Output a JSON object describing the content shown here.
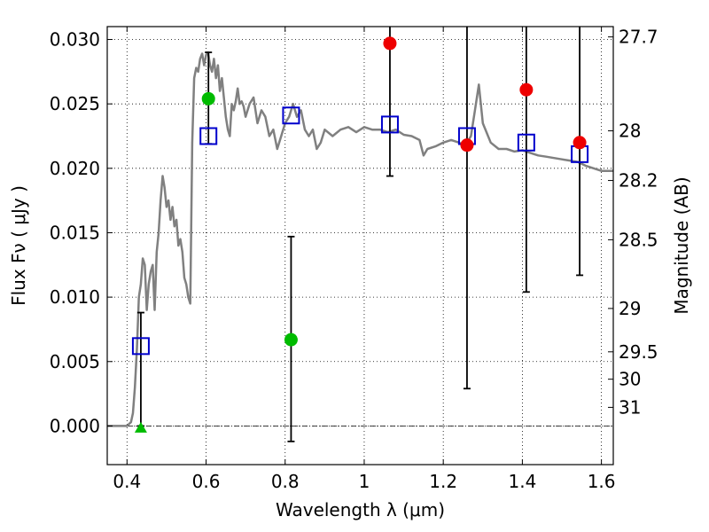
{
  "chart_data": {
    "type": "scatter",
    "xlabel": "Wavelength  λ (μm)",
    "ylabel": "Flux  Fν  ( μJy )",
    "ylabel_right": "Magnitude (AB)",
    "xlim": [
      0.35,
      1.63
    ],
    "ylim": [
      -0.003,
      0.031
    ],
    "grid": true,
    "x_ticks": [
      {
        "value": 0.4,
        "label": "0.4"
      },
      {
        "value": 0.6,
        "label": "0.6"
      },
      {
        "value": 0.8,
        "label": "0.8"
      },
      {
        "value": 1.0,
        "label": "1"
      },
      {
        "value": 1.2,
        "label": "1.2"
      },
      {
        "value": 1.4,
        "label": "1.4"
      },
      {
        "value": 1.6,
        "label": "1.6"
      }
    ],
    "y_ticks": [
      {
        "value": 0.0,
        "label": "0.000"
      },
      {
        "value": 0.005,
        "label": "0.005"
      },
      {
        "value": 0.01,
        "label": "0.010"
      },
      {
        "value": 0.015,
        "label": "0.015"
      },
      {
        "value": 0.02,
        "label": "0.020"
      },
      {
        "value": 0.025,
        "label": "0.025"
      },
      {
        "value": 0.03,
        "label": "0.030"
      }
    ],
    "mag_ticks": [
      {
        "value": 27.7,
        "label": "27.7"
      },
      {
        "value": 28.0,
        "label": "28"
      },
      {
        "value": 28.2,
        "label": "28.2"
      },
      {
        "value": 28.5,
        "label": "28.5"
      },
      {
        "value": 29.0,
        "label": "29"
      },
      {
        "value": 29.5,
        "label": "29.5"
      },
      {
        "value": 30.0,
        "label": "30"
      },
      {
        "value": 31.0,
        "label": "31"
      }
    ],
    "series": [
      {
        "kind": "line",
        "color": "#808080",
        "x": [
          0.35,
          0.4,
          0.41,
          0.415,
          0.42,
          0.425,
          0.43,
          0.435,
          0.44,
          0.445,
          0.45,
          0.455,
          0.46,
          0.465,
          0.47,
          0.475,
          0.48,
          0.485,
          0.49,
          0.495,
          0.5,
          0.505,
          0.51,
          0.515,
          0.52,
          0.525,
          0.53,
          0.535,
          0.54,
          0.545,
          0.55,
          0.555,
          0.56,
          0.565,
          0.57,
          0.575,
          0.58,
          0.585,
          0.59,
          0.595,
          0.6,
          0.605,
          0.61,
          0.615,
          0.62,
          0.625,
          0.63,
          0.635,
          0.64,
          0.645,
          0.65,
          0.655,
          0.66,
          0.665,
          0.67,
          0.675,
          0.68,
          0.685,
          0.69,
          0.695,
          0.7,
          0.71,
          0.72,
          0.73,
          0.74,
          0.75,
          0.76,
          0.77,
          0.78,
          0.79,
          0.8,
          0.81,
          0.82,
          0.83,
          0.84,
          0.85,
          0.86,
          0.87,
          0.88,
          0.89,
          0.9,
          0.92,
          0.94,
          0.96,
          0.98,
          1.0,
          1.02,
          1.04,
          1.06,
          1.08,
          1.1,
          1.12,
          1.14,
          1.15,
          1.16,
          1.18,
          1.2,
          1.22,
          1.24,
          1.25,
          1.26,
          1.27,
          1.28,
          1.29,
          1.3,
          1.32,
          1.34,
          1.36,
          1.38,
          1.4,
          1.42,
          1.44,
          1.46,
          1.48,
          1.5,
          1.52,
          1.54,
          1.56,
          1.58,
          1.6,
          1.63
        ],
        "y": [
          0.0,
          0.0,
          0.0003,
          0.001,
          0.003,
          0.006,
          0.01,
          0.011,
          0.013,
          0.0125,
          0.009,
          0.011,
          0.012,
          0.0125,
          0.009,
          0.0135,
          0.015,
          0.0175,
          0.0194,
          0.0185,
          0.017,
          0.0175,
          0.016,
          0.017,
          0.0155,
          0.016,
          0.014,
          0.0145,
          0.0135,
          0.0115,
          0.011,
          0.01,
          0.0095,
          0.022,
          0.027,
          0.0278,
          0.0275,
          0.0285,
          0.0289,
          0.028,
          0.0288,
          0.029,
          0.028,
          0.0275,
          0.0285,
          0.027,
          0.028,
          0.026,
          0.027,
          0.0255,
          0.024,
          0.023,
          0.0225,
          0.025,
          0.0245,
          0.0252,
          0.0262,
          0.025,
          0.0252,
          0.0248,
          0.024,
          0.025,
          0.0255,
          0.0235,
          0.0245,
          0.024,
          0.0225,
          0.023,
          0.0215,
          0.0225,
          0.0235,
          0.024,
          0.025,
          0.024,
          0.0245,
          0.023,
          0.0225,
          0.023,
          0.0215,
          0.022,
          0.023,
          0.0225,
          0.023,
          0.0232,
          0.0228,
          0.0232,
          0.023,
          0.023,
          0.0228,
          0.023,
          0.0226,
          0.0225,
          0.0222,
          0.021,
          0.0215,
          0.0217,
          0.022,
          0.0222,
          0.022,
          0.0218,
          0.022,
          0.0225,
          0.0245,
          0.0265,
          0.0235,
          0.022,
          0.0215,
          0.0215,
          0.0213,
          0.0214,
          0.0212,
          0.021,
          0.0209,
          0.0208,
          0.0207,
          0.0206,
          0.0205,
          0.0202,
          0.02,
          0.0198,
          0.0198
        ]
      },
      {
        "kind": "open-square",
        "color": "#0000cc",
        "x": [
          0.435,
          0.606,
          0.815,
          1.065,
          1.26,
          1.41,
          1.545
        ],
        "y": [
          0.0062,
          0.0225,
          0.0241,
          0.0234,
          0.0225,
          0.022,
          0.0211
        ]
      },
      {
        "kind": "filled-circle",
        "color": "#00bb00",
        "x": [
          0.606,
          0.815
        ],
        "y": [
          0.0254,
          0.0067
        ]
      },
      {
        "kind": "filled-triangle",
        "color": "#00bb00",
        "x": [
          0.435
        ],
        "y": [
          -0.0001
        ]
      },
      {
        "kind": "filled-circle",
        "color": "#ee0000",
        "x": [
          1.065,
          1.26,
          1.41,
          1.545
        ],
        "y": [
          0.0297,
          0.0218,
          0.0261,
          0.022
        ]
      },
      {
        "kind": "errorbar",
        "color": "#000000",
        "x": [
          0.435,
          0.606,
          0.815,
          1.065,
          1.26,
          1.41,
          1.545
        ],
        "low": [
          0.0,
          0.0219,
          -0.0012,
          0.0194,
          0.0029,
          0.0104,
          0.0117
        ],
        "high": [
          0.0088,
          0.029,
          0.0147,
          0.032,
          0.032,
          0.032,
          0.032
        ]
      }
    ]
  }
}
